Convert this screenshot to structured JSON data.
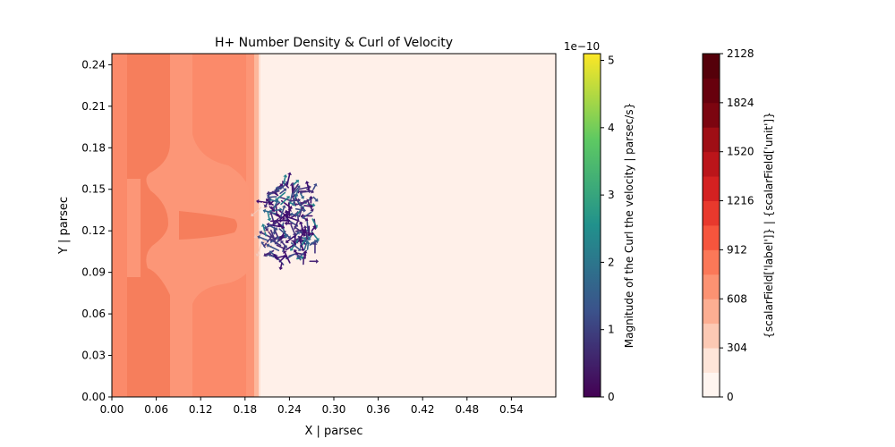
{
  "chart_data": {
    "type": "heatmap",
    "title": "H+ Number Density & Curl of Velocity",
    "xlabel": "X | parsec",
    "ylabel": "Y | parsec",
    "xlim": [
      0.0,
      0.6
    ],
    "ylim": [
      0.0,
      0.248
    ],
    "x_ticks": [
      "0.00",
      "0.06",
      "0.12",
      "0.18",
      "0.24",
      "0.30",
      "0.36",
      "0.42",
      "0.48",
      "0.54"
    ],
    "y_ticks": [
      "0.00",
      "0.03",
      "0.06",
      "0.09",
      "0.12",
      "0.15",
      "0.18",
      "0.21",
      "0.24"
    ],
    "background_region": {
      "x_from": 0.198,
      "x_to": 0.6,
      "level": 0
    },
    "dense_region": {
      "x_from": 0.0,
      "x_to": 0.198
    },
    "vector_cluster": {
      "x_center": 0.245,
      "y_center": 0.125,
      "x_from": 0.18,
      "x_to": 0.275,
      "y_from": 0.095,
      "y_to": 0.155
    },
    "curl_colorbar": {
      "label": "Magnitude of the Curl the velocity | parsec/s}",
      "exponent": "1e−10",
      "ticks": [
        "0",
        "1",
        "2",
        "3",
        "4",
        "5"
      ],
      "range": [
        0,
        5.1
      ],
      "colormap": [
        "#440154",
        "#3b528b",
        "#21918c",
        "#5ec962",
        "#fde725"
      ]
    },
    "density_colorbar": {
      "label": "{scalarField['label']} | {scalarField['unit']}",
      "ticks": [
        "0",
        "304",
        "608",
        "912",
        "1216",
        "1520",
        "1824",
        "2128"
      ],
      "range": [
        0,
        2128
      ],
      "levels": 14,
      "colormap": [
        "#fff5f0",
        "#fee5d9",
        "#fcc9b4",
        "#fcae92",
        "#fc9272",
        "#fb7858",
        "#f6553d",
        "#e8392d",
        "#d42121",
        "#bb151a",
        "#9f0e15",
        "#7c0510",
        "#67000d",
        "#55000a"
      ]
    }
  }
}
